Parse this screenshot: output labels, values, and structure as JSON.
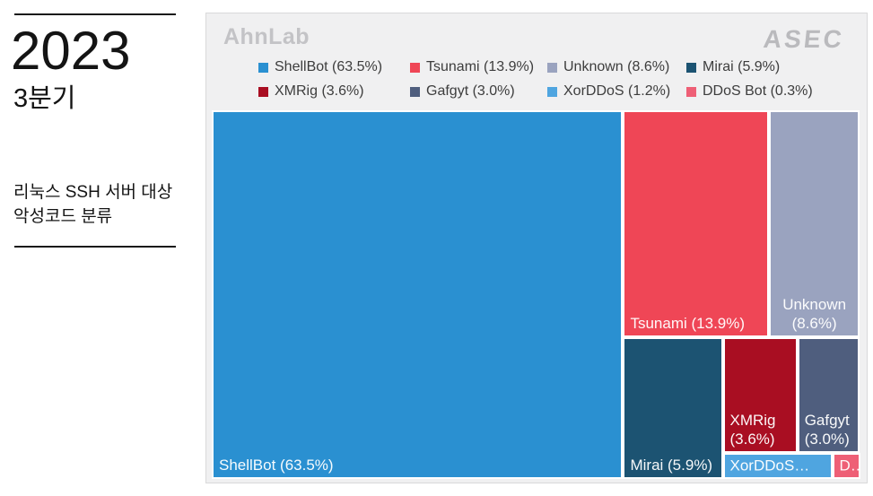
{
  "sidebar": {
    "year": "2023",
    "quarter": "3분기",
    "description_lines": [
      "리눅스 SSH 서버 대상",
      "악성코드 분류"
    ]
  },
  "branding": {
    "ahnlab_logo": "AhnLab",
    "asec_logo": "ASEC"
  },
  "chart_data": {
    "type": "treemap",
    "title": "리눅스 SSH 서버 대상 악성코드 분류 (2023 3분기)",
    "unit": "percent",
    "legend_position": "top",
    "background_color": "#f0f0f1",
    "gap_color": "#ffffff",
    "series": [
      {
        "name": "ShellBot",
        "value": 63.5
      },
      {
        "name": "Tsunami",
        "value": 13.9
      },
      {
        "name": "Unknown",
        "value": 8.6
      },
      {
        "name": "Mirai",
        "value": 5.9
      },
      {
        "name": "XMRig",
        "value": 3.6
      },
      {
        "name": "Gafgyt",
        "value": 3.0
      },
      {
        "name": "XorDDoS",
        "value": 1.2
      },
      {
        "name": "DDoS Bot",
        "value": 0.3
      }
    ],
    "legend_items": [
      {
        "name": "ShellBot",
        "label": "ShellBot (63.5%)"
      },
      {
        "name": "Tsunami",
        "label": "Tsunami (13.9%)"
      },
      {
        "name": "Unknown",
        "label": "Unknown (8.6%)"
      },
      {
        "name": "Mirai",
        "label": "Mirai (5.9%)"
      },
      {
        "name": "XMRig",
        "label": "XMRig (3.6%)"
      },
      {
        "name": "Gafgyt",
        "label": "Gafgyt (3.0%)"
      },
      {
        "name": "XorDDoS",
        "label": "XorDDoS (1.2%)"
      },
      {
        "name": "DDoS Bot",
        "label": "DDoS Bot (0.3%)"
      }
    ],
    "tiles": [
      {
        "name": "ShellBot",
        "color": "#2a90d1",
        "x": 0,
        "y": 0,
        "w": 63.5,
        "h": 100,
        "align": "bottom-left",
        "label_lines": [
          "ShellBot (63.5%)"
        ]
      },
      {
        "name": "Tsunami",
        "color": "#ef4656",
        "x": 63.5,
        "y": 0,
        "w": 22.55,
        "h": 61.64,
        "align": "bottom-left",
        "label_lines": [
          "Tsunami (13.9%)"
        ]
      },
      {
        "name": "Unknown",
        "color": "#9aa3bf",
        "x": 86.05,
        "y": 0,
        "w": 13.95,
        "h": 61.64,
        "align": "bottom-center",
        "label_lines": [
          "Unknown",
          "(8.6%)"
        ]
      },
      {
        "name": "Mirai",
        "color": "#1c5372",
        "x": 63.5,
        "y": 61.64,
        "w": 15.38,
        "h": 38.36,
        "align": "bottom-left",
        "label_lines": [
          "Mirai (5.9%)"
        ]
      },
      {
        "name": "XMRig",
        "color": "#a90e22",
        "x": 78.88,
        "y": 61.64,
        "w": 11.52,
        "h": 31.26,
        "align": "bottom-left",
        "label_lines": [
          "XMRig",
          "(3.6%)"
        ]
      },
      {
        "name": "Gafgyt",
        "color": "#4f5e7e",
        "x": 90.4,
        "y": 61.64,
        "w": 9.6,
        "h": 31.26,
        "align": "bottom-left",
        "label_lines": [
          "Gafgyt",
          "(3.0%)"
        ]
      },
      {
        "name": "XorDDoS",
        "color": "#4fa5e0",
        "x": 78.88,
        "y": 92.9,
        "w": 16.9,
        "h": 7.1,
        "align": "middle-left",
        "label_lines": [
          "XorDDoS…"
        ]
      },
      {
        "name": "DDoS Bot",
        "color": "#ee5f76",
        "x": 95.78,
        "y": 92.9,
        "w": 4.34,
        "h": 7.1,
        "align": "middle-left",
        "label_lines": [
          "D…"
        ]
      }
    ]
  }
}
